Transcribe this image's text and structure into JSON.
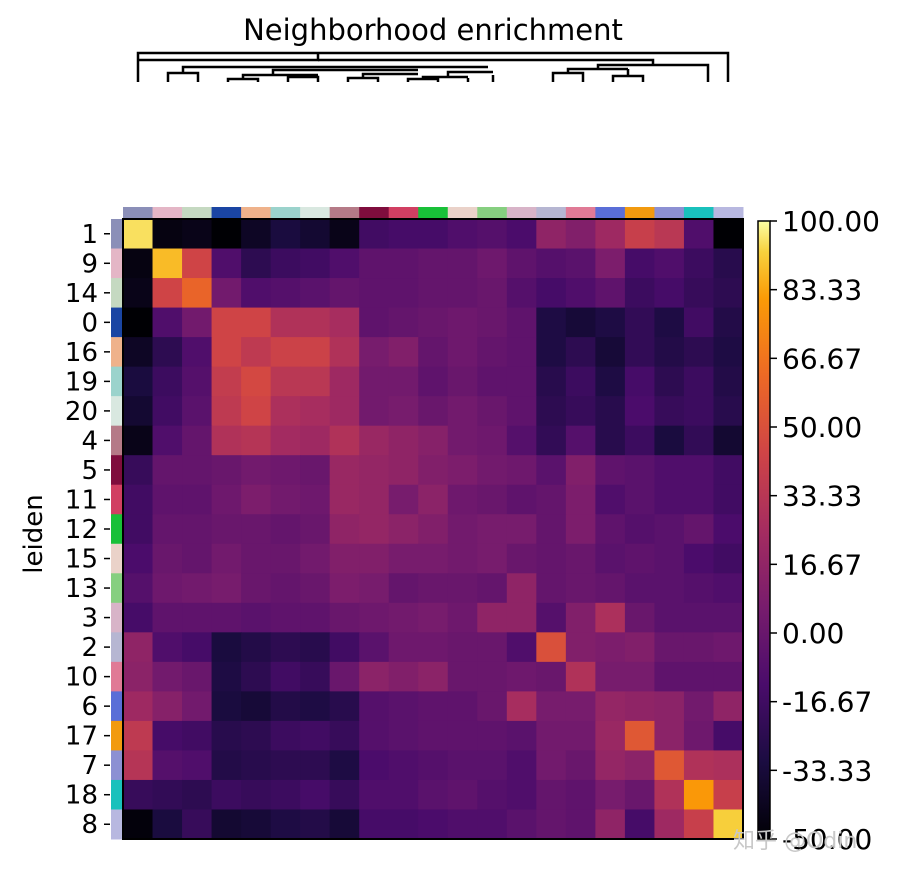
{
  "chart_data": {
    "type": "heatmap",
    "title": "Neighborhood enrichment",
    "ylabel": "leiden",
    "xlabel": "",
    "row_labels": [
      "1",
      "9",
      "14",
      "0",
      "16",
      "19",
      "20",
      "4",
      "5",
      "11",
      "12",
      "15",
      "13",
      "3",
      "2",
      "10",
      "6",
      "17",
      "7",
      "18",
      "8"
    ],
    "category_colors": [
      "#8b8fb8",
      "#e4b6c6",
      "#c5d9c1",
      "#1a45a3",
      "#efb28b",
      "#9bd3cc",
      "#d9e8e0",
      "#b57a87",
      "#7f0d3d",
      "#d13f62",
      "#18c038",
      "#ead2c9",
      "#86cf80",
      "#d8b4c8",
      "#b6b6d2",
      "#e07a96",
      "#5a6ed7",
      "#f29a0f",
      "#8c90d3",
      "#19c1bc",
      "#b8b8e0"
    ],
    "colorbar": {
      "min": -50,
      "max": 100,
      "ticks": [
        "100.00",
        "83.33",
        "66.67",
        "50.00",
        "33.33",
        "16.67",
        "0.00",
        "-16.67",
        "-33.33",
        "-50.00"
      ],
      "colormap": "inferno"
    },
    "values": [
      [
        95,
        -46,
        -44,
        -50,
        -40,
        -32,
        -36,
        -44,
        -16,
        -14,
        -14,
        -10,
        -8,
        -12,
        16,
        10,
        22,
        40,
        34,
        -10,
        -50
      ],
      [
        -46,
        88,
        44,
        -10,
        -24,
        -18,
        -16,
        -10,
        -4,
        -4,
        -2,
        -2,
        2,
        -4,
        -8,
        -6,
        8,
        -14,
        -10,
        -18,
        -26
      ],
      [
        -44,
        44,
        60,
        4,
        -10,
        -8,
        -6,
        -2,
        -4,
        -4,
        -2,
        -2,
        0,
        -8,
        -14,
        -10,
        -4,
        -18,
        -14,
        -20,
        -24
      ],
      [
        -50,
        -10,
        4,
        44,
        44,
        30,
        30,
        26,
        -4,
        -2,
        0,
        2,
        0,
        -4,
        -30,
        -34,
        -30,
        -22,
        -30,
        -16,
        -28
      ],
      [
        -40,
        -24,
        -10,
        44,
        36,
        42,
        42,
        30,
        6,
        10,
        -2,
        2,
        -2,
        -4,
        -30,
        -24,
        -34,
        -22,
        -28,
        -24,
        -30
      ],
      [
        -32,
        -18,
        -8,
        38,
        46,
        34,
        34,
        22,
        4,
        4,
        -4,
        0,
        -4,
        -4,
        -26,
        -18,
        -30,
        -14,
        -24,
        -18,
        -28
      ],
      [
        -36,
        -16,
        -6,
        36,
        44,
        28,
        26,
        22,
        4,
        6,
        0,
        4,
        0,
        -4,
        -24,
        -20,
        -26,
        -12,
        -20,
        -18,
        -26
      ],
      [
        -44,
        -10,
        -2,
        30,
        32,
        24,
        22,
        30,
        20,
        16,
        12,
        4,
        2,
        -8,
        -22,
        -8,
        -26,
        -18,
        -32,
        -22,
        -36
      ],
      [
        -20,
        -2,
        -2,
        0,
        4,
        2,
        0,
        20,
        18,
        16,
        10,
        8,
        4,
        2,
        -6,
        10,
        -4,
        -6,
        -10,
        -10,
        -16
      ],
      [
        -16,
        -4,
        -4,
        2,
        8,
        4,
        2,
        20,
        18,
        6,
        14,
        2,
        0,
        -4,
        -2,
        8,
        -10,
        -6,
        -10,
        -10,
        -16
      ],
      [
        -16,
        -2,
        -2,
        0,
        0,
        -2,
        0,
        16,
        18,
        14,
        10,
        4,
        6,
        6,
        -2,
        8,
        -4,
        -8,
        -6,
        -2,
        -12
      ],
      [
        -12,
        0,
        -2,
        4,
        0,
        0,
        4,
        10,
        10,
        6,
        6,
        4,
        6,
        0,
        -2,
        0,
        -6,
        -4,
        -6,
        -12,
        -16
      ],
      [
        -8,
        2,
        4,
        6,
        0,
        -2,
        0,
        8,
        6,
        -2,
        0,
        0,
        -2,
        16,
        -2,
        0,
        -2,
        -6,
        -6,
        -8,
        -10
      ],
      [
        -14,
        -4,
        -4,
        -4,
        -6,
        -4,
        -4,
        0,
        2,
        4,
        6,
        2,
        16,
        16,
        -8,
        10,
        28,
        0,
        -6,
        -6,
        -6
      ],
      [
        16,
        -10,
        -14,
        -32,
        -28,
        -24,
        -26,
        -16,
        -6,
        2,
        2,
        0,
        0,
        -10,
        50,
        10,
        8,
        10,
        0,
        0,
        2
      ],
      [
        14,
        4,
        0,
        -30,
        -24,
        -16,
        -20,
        0,
        14,
        10,
        14,
        0,
        0,
        2,
        0,
        30,
        6,
        6,
        -4,
        -4,
        -4
      ],
      [
        22,
        12,
        4,
        -32,
        -34,
        -28,
        -30,
        -26,
        -8,
        -6,
        -4,
        -4,
        0,
        26,
        6,
        6,
        18,
        16,
        14,
        4,
        16
      ],
      [
        36,
        -14,
        -16,
        -26,
        -24,
        -18,
        -16,
        -20,
        -8,
        -6,
        -4,
        -4,
        -4,
        -6,
        4,
        4,
        20,
        54,
        14,
        2,
        -14
      ],
      [
        32,
        -8,
        -10,
        -28,
        -26,
        -24,
        -24,
        -30,
        -12,
        -10,
        -8,
        -6,
        -6,
        -10,
        4,
        0,
        18,
        14,
        54,
        30,
        28
      ],
      [
        -20,
        -22,
        -24,
        -18,
        -20,
        -18,
        -14,
        -20,
        -10,
        -10,
        -6,
        -4,
        -8,
        -10,
        -2,
        -4,
        6,
        0,
        30,
        80,
        40
      ],
      [
        -48,
        -32,
        -20,
        -36,
        -34,
        -30,
        -28,
        -34,
        -14,
        -14,
        -12,
        -10,
        -10,
        -6,
        -2,
        -4,
        16,
        -14,
        22,
        40,
        92
      ]
    ],
    "dendrogram": "hierarchical clustering of columns shown above heatmap"
  },
  "watermark": {
    "text": "知乎 @Odin"
  }
}
